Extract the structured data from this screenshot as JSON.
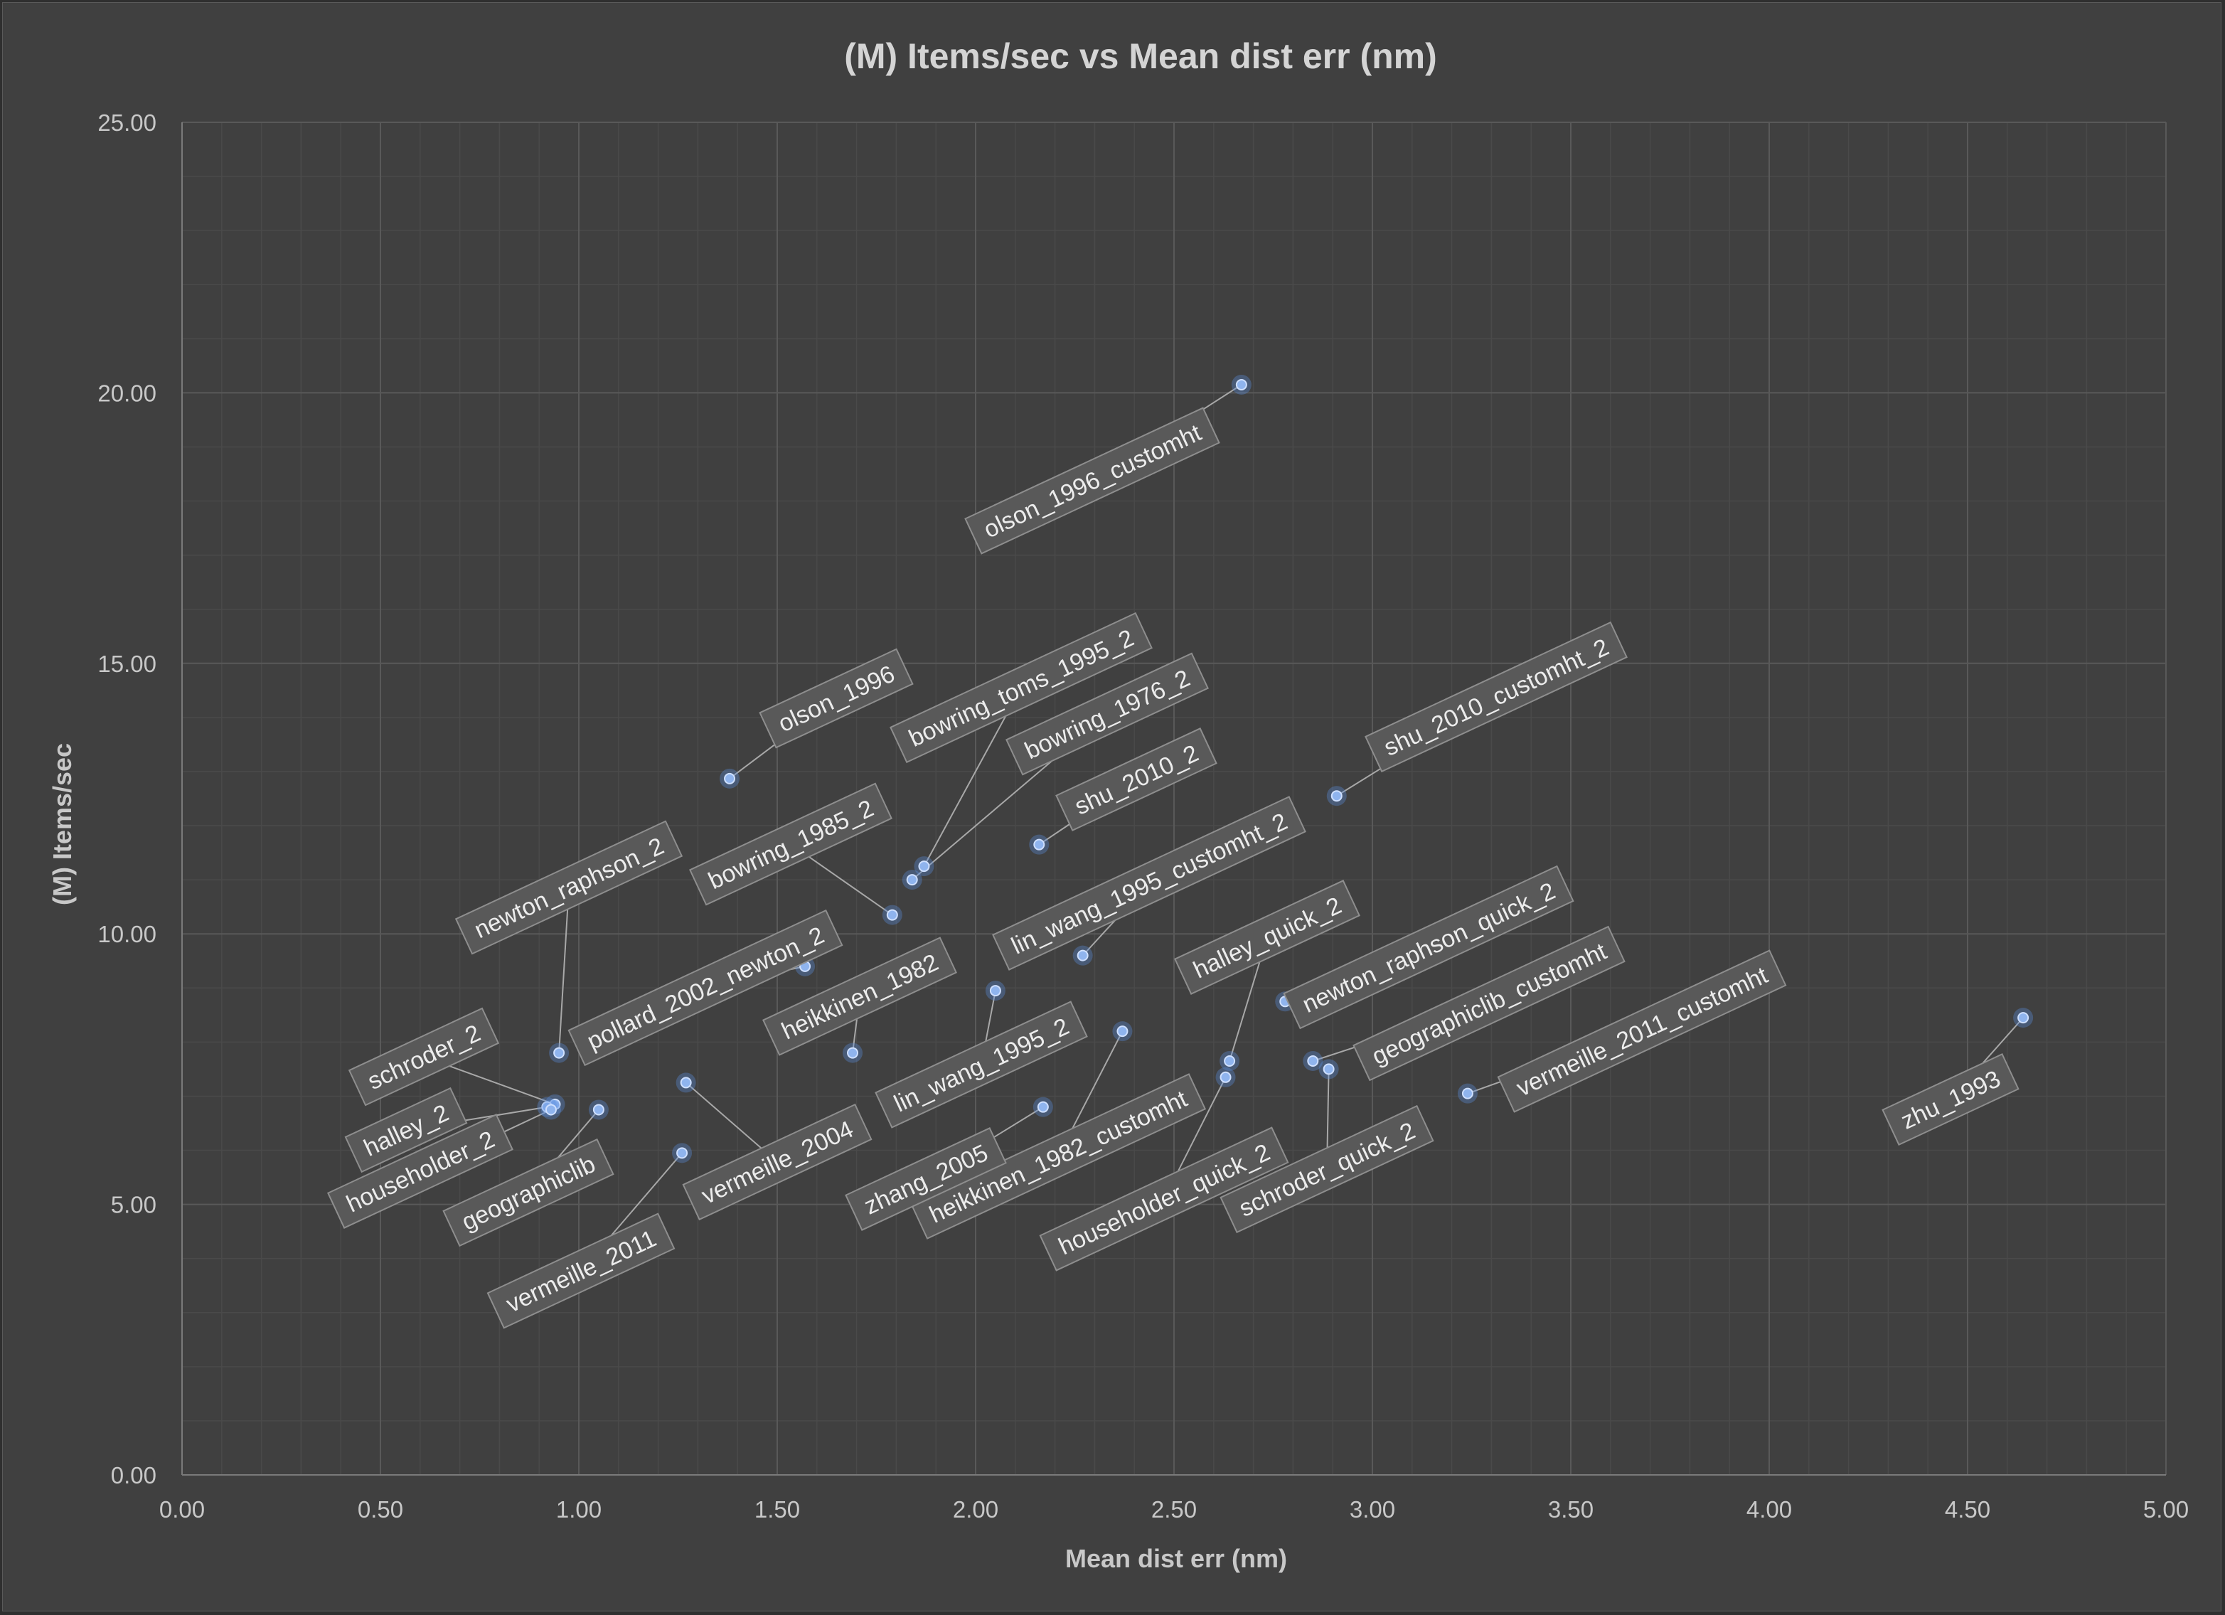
{
  "chart_data": {
    "type": "scatter",
    "title": "(M) Items/sec vs Mean dist err (nm)",
    "xlabel": "Mean dist err (nm)",
    "ylabel": "(M) Items/sec",
    "xlim": [
      0,
      5
    ],
    "ylim": [
      0,
      25
    ],
    "x_ticks": [
      "0.00",
      "0.50",
      "1.00",
      "1.50",
      "2.00",
      "2.50",
      "3.00",
      "3.50",
      "4.00",
      "4.50",
      "5.00"
    ],
    "y_ticks": [
      "0.00",
      "5.00",
      "10.00",
      "15.00",
      "20.00",
      "25.00"
    ],
    "grid": {
      "major": true,
      "minor": true
    },
    "marker_color": "#8fb4ee",
    "points": [
      {
        "name": "olson_1996_customht",
        "x": 2.67,
        "y": 20.15
      },
      {
        "name": "olson_1996",
        "x": 1.38,
        "y": 12.87
      },
      {
        "name": "bowring_toms_1995_2",
        "x": 1.87,
        "y": 11.25
      },
      {
        "name": "bowring_1976_2",
        "x": 1.84,
        "y": 11.0
      },
      {
        "name": "bowring_1985_2",
        "x": 1.79,
        "y": 10.35
      },
      {
        "name": "shu_2010_2",
        "x": 2.16,
        "y": 11.65
      },
      {
        "name": "shu_2010_customht_2",
        "x": 2.91,
        "y": 12.55
      },
      {
        "name": "newton_raphson_2",
        "x": 0.95,
        "y": 7.8
      },
      {
        "name": "pollard_2002_newton_2",
        "x": 1.57,
        "y": 9.4
      },
      {
        "name": "lin_wang_1995_customht_2",
        "x": 2.27,
        "y": 9.6
      },
      {
        "name": "heikkinen_1982",
        "x": 1.69,
        "y": 7.8
      },
      {
        "name": "lin_wang_1995_2",
        "x": 2.05,
        "y": 8.95
      },
      {
        "name": "halley_quick_2",
        "x": 2.64,
        "y": 7.65
      },
      {
        "name": "newton_raphson_quick_2",
        "x": 2.78,
        "y": 8.75
      },
      {
        "name": "geographiclib_customht",
        "x": 2.85,
        "y": 7.65
      },
      {
        "name": "schroder_quick_2",
        "x": 2.89,
        "y": 7.5
      },
      {
        "name": "householder_quick_2",
        "x": 2.63,
        "y": 7.35
      },
      {
        "name": "heikkinen_1982_customht",
        "x": 2.37,
        "y": 8.2
      },
      {
        "name": "zhang_2005",
        "x": 2.17,
        "y": 6.8
      },
      {
        "name": "vermeille_2011_customht",
        "x": 3.24,
        "y": 7.05
      },
      {
        "name": "zhu_1993",
        "x": 4.64,
        "y": 8.45
      },
      {
        "name": "schroder_2",
        "x": 0.94,
        "y": 6.85
      },
      {
        "name": "halley_2",
        "x": 0.92,
        "y": 6.8
      },
      {
        "name": "householder_2",
        "x": 0.93,
        "y": 6.75
      },
      {
        "name": "geographiclib",
        "x": 1.05,
        "y": 6.75
      },
      {
        "name": "vermeille_2004",
        "x": 1.27,
        "y": 7.25
      },
      {
        "name": "vermeille_2011",
        "x": 1.26,
        "y": 5.95
      }
    ]
  }
}
